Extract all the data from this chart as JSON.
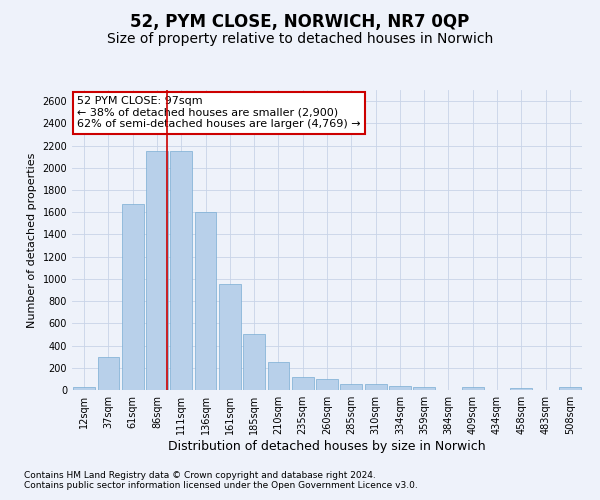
{
  "title": "52, PYM CLOSE, NORWICH, NR7 0QP",
  "subtitle": "Size of property relative to detached houses in Norwich",
  "xlabel": "Distribution of detached houses by size in Norwich",
  "ylabel": "Number of detached properties",
  "categories": [
    "12sqm",
    "37sqm",
    "61sqm",
    "86sqm",
    "111sqm",
    "136sqm",
    "161sqm",
    "185sqm",
    "210sqm",
    "235sqm",
    "260sqm",
    "285sqm",
    "310sqm",
    "334sqm",
    "359sqm",
    "384sqm",
    "409sqm",
    "434sqm",
    "458sqm",
    "483sqm",
    "508sqm"
  ],
  "values": [
    25,
    300,
    1670,
    2150,
    2150,
    1600,
    950,
    500,
    250,
    120,
    100,
    50,
    50,
    35,
    25,
    0,
    25,
    0,
    20,
    0,
    25
  ],
  "bar_color": "#b8d0ea",
  "bar_edge_color": "#7aadd4",
  "grid_color": "#c8d4e8",
  "background_color": "#eef2fa",
  "vline_x": 3.42,
  "vline_color": "#cc0000",
  "annotation_text": "52 PYM CLOSE: 97sqm\n← 38% of detached houses are smaller (2,900)\n62% of semi-detached houses are larger (4,769) →",
  "annotation_box_color": "#ffffff",
  "annotation_box_edge": "#cc0000",
  "ylim": [
    0,
    2700
  ],
  "yticks": [
    0,
    200,
    400,
    600,
    800,
    1000,
    1200,
    1400,
    1600,
    1800,
    2000,
    2200,
    2400,
    2600
  ],
  "footer_line1": "Contains HM Land Registry data © Crown copyright and database right 2024.",
  "footer_line2": "Contains public sector information licensed under the Open Government Licence v3.0.",
  "title_fontsize": 12,
  "subtitle_fontsize": 10,
  "xlabel_fontsize": 9,
  "ylabel_fontsize": 8,
  "tick_fontsize": 7,
  "annotation_fontsize": 8,
  "footer_fontsize": 6.5
}
